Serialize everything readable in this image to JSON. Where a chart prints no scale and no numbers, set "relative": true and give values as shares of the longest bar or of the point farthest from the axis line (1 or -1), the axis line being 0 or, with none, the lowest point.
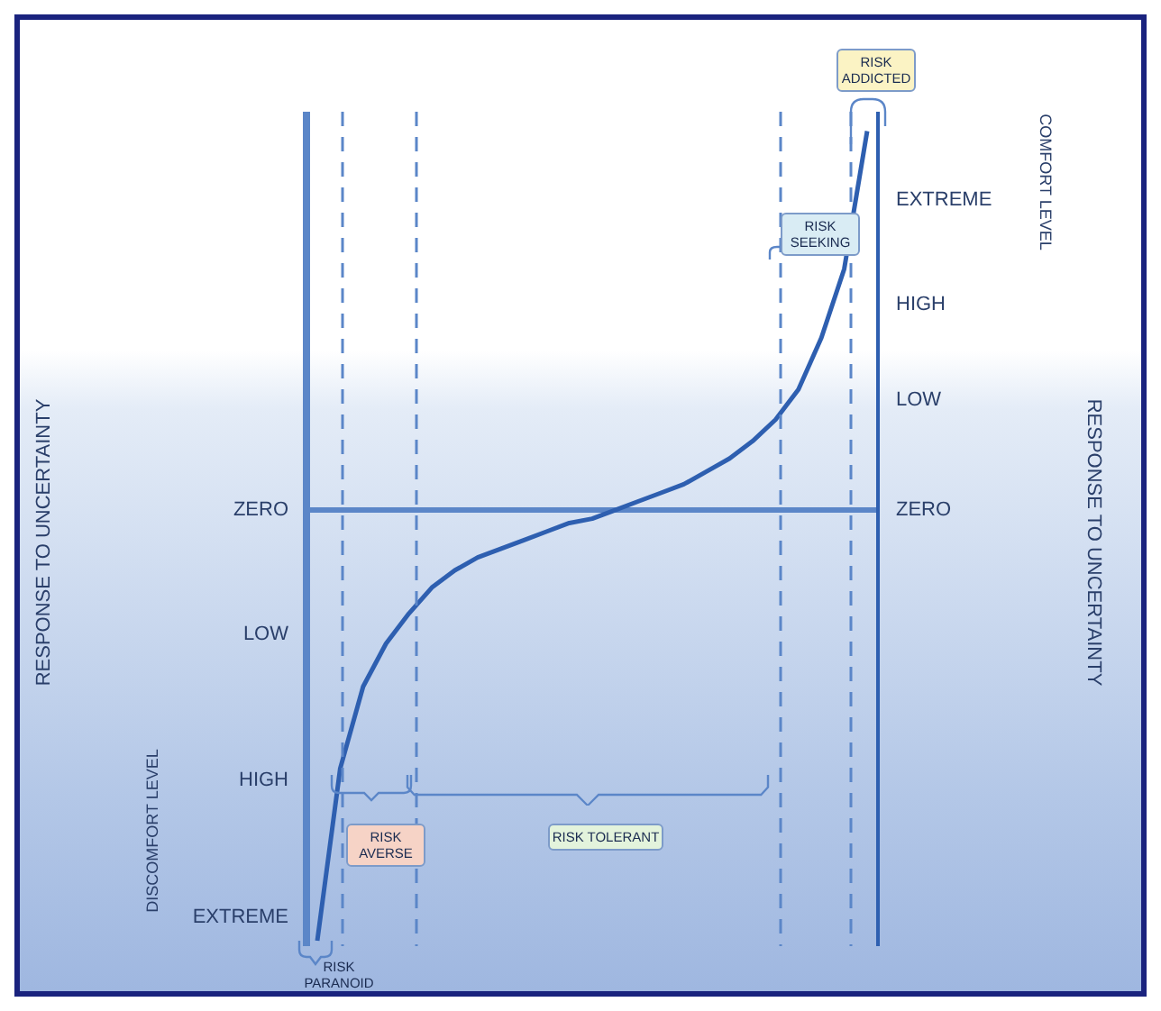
{
  "chart_data": {
    "type": "line",
    "categories": [
      null,
      null,
      null,
      null,
      null,
      null,
      null,
      null,
      null,
      null,
      null,
      null,
      null,
      null,
      null,
      null,
      null,
      null,
      null,
      null,
      null,
      null,
      null,
      null,
      null
    ],
    "series": [
      {
        "color": "#2e5fb0",
        "values": [
          -1,
          -0.6,
          -0.41,
          -0.31,
          -0.24,
          -0.18,
          -0.14,
          -0.11,
          -0.09,
          -0.07,
          -0.05,
          -0.03,
          -0.02,
          0,
          0.02,
          0.04,
          0.06,
          0.09,
          0.12,
          0.16,
          0.21,
          0.28,
          0.4,
          0.56,
          0.88
        ]
      }
    ],
    "relative": true,
    "ref_lines": [
      {
        "axis": "y",
        "value": 0,
        "line_style": "solid",
        "color": "#5b86c8"
      }
    ],
    "annotations": [
      "RISK PARANOID",
      "RISK AVERSE",
      "RISK TOLERANT",
      "RISK SEEKING",
      "RISK ADDICTED",
      "DISCOMFORT LEVEL",
      "COMFORT LEVEL",
      "ZERO",
      "LOW",
      "HIGH",
      "EXTREME",
      "ZERO",
      "LOW",
      "HIGH",
      "EXTREME",
      "RESPONSE TO UNCERTAINTY",
      "RESPONSE TO UNCERTAINTY"
    ]
  }
}
